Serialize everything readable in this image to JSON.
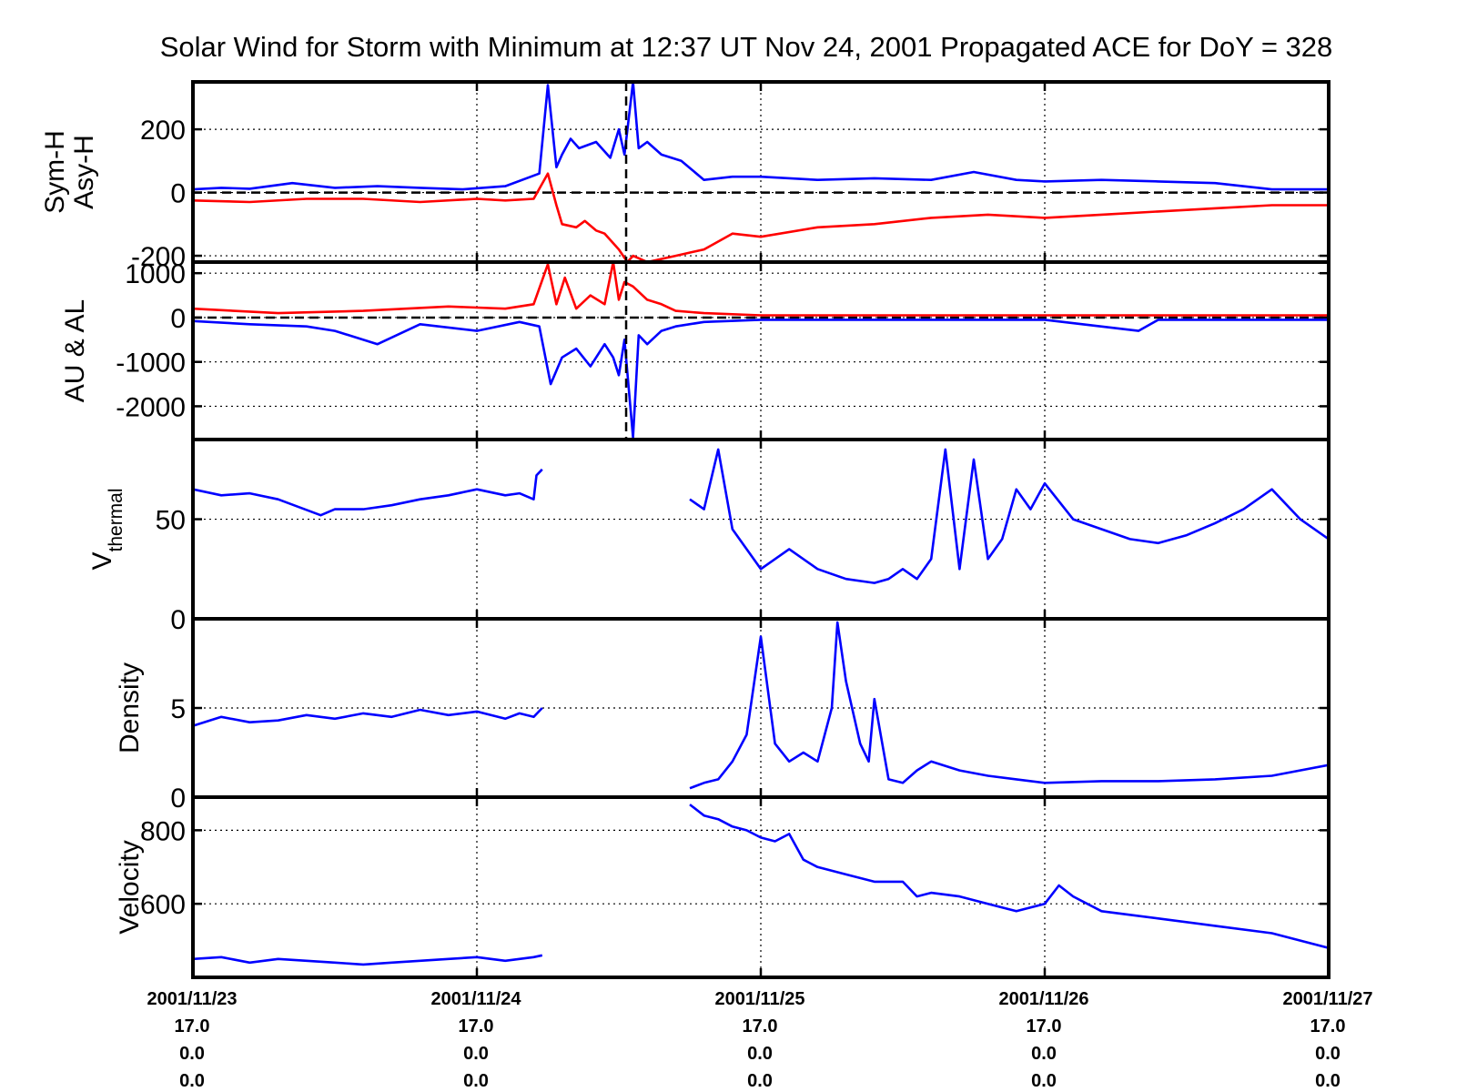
{
  "figure": {
    "title": "Solar Wind for Storm with Minimum at 12:37 UT Nov 24, 2001  Propagated ACE for DoY = 328",
    "x_tick_lines": [
      [
        "2001/11/23",
        "17.0",
        "0.0",
        "0.0"
      ],
      [
        "2001/11/24",
        "17.0",
        "0.0",
        "0.0"
      ],
      [
        "2001/11/25",
        "17.0",
        "0.0",
        "0.0"
      ],
      [
        "2001/11/26",
        "17.0",
        "0.0",
        "0.0"
      ],
      [
        "2001/11/27",
        "17.0",
        "0.0",
        "0.0"
      ]
    ]
  },
  "chart_data": [
    {
      "type": "line",
      "panel": "sym-asy",
      "ylabel_lines": [
        "Sym-H",
        "Asy-H"
      ],
      "x_range_days": [
        23,
        27
      ],
      "ylim": [
        -220,
        350
      ],
      "yticks": [
        -200,
        0,
        200
      ],
      "ytick_labels": [
        "-200",
        "0",
        "200"
      ],
      "grid": true,
      "zero_line": 0,
      "event_marker_day": 24.5257,
      "series": [
        {
          "color": "#0000ff",
          "x": [
            23.0,
            23.1,
            23.2,
            23.35,
            23.5,
            23.65,
            23.8,
            23.95,
            24.1,
            24.22,
            24.25,
            24.28,
            24.3,
            24.33,
            24.36,
            24.42,
            24.47,
            24.5,
            24.52,
            24.55,
            24.57,
            24.6,
            24.65,
            24.72,
            24.8,
            24.9,
            25.0,
            25.2,
            25.4,
            25.6,
            25.75,
            25.9,
            26.0,
            26.2,
            26.4,
            26.6,
            26.8,
            27.0
          ],
          "y": [
            10,
            15,
            12,
            30,
            15,
            20,
            15,
            10,
            20,
            60,
            340,
            80,
            120,
            170,
            140,
            160,
            110,
            200,
            120,
            350,
            140,
            160,
            120,
            100,
            40,
            50,
            50,
            40,
            45,
            40,
            65,
            40,
            35,
            40,
            35,
            30,
            10,
            10
          ]
        },
        {
          "color": "#ff0000",
          "x": [
            23.0,
            23.2,
            23.4,
            23.6,
            23.8,
            24.0,
            24.1,
            24.2,
            24.25,
            24.28,
            24.3,
            24.35,
            24.38,
            24.42,
            24.45,
            24.5,
            24.53,
            24.55,
            24.6,
            24.7,
            24.8,
            24.9,
            25.0,
            25.2,
            25.4,
            25.6,
            25.8,
            26.0,
            26.2,
            26.4,
            26.6,
            26.8,
            27.0
          ],
          "y": [
            -25,
            -30,
            -20,
            -20,
            -30,
            -20,
            -25,
            -20,
            60,
            -40,
            -100,
            -110,
            -90,
            -120,
            -130,
            -180,
            -220,
            -200,
            -220,
            -200,
            -180,
            -130,
            -140,
            -110,
            -100,
            -80,
            -70,
            -80,
            -70,
            -60,
            -50,
            -40,
            -40
          ]
        }
      ]
    },
    {
      "type": "line",
      "panel": "au-al",
      "ylabel_lines": [
        "AU & AL"
      ],
      "x_range_days": [
        23,
        27
      ],
      "ylim": [
        -2750,
        1250
      ],
      "yticks": [
        -2000,
        -1000,
        0,
        1000
      ],
      "ytick_labels": [
        "-2000",
        "-1000",
        "0",
        "1000"
      ],
      "grid": true,
      "zero_line": 0,
      "event_marker_day": 24.5257,
      "series": [
        {
          "color": "#0000ff",
          "x": [
            23.0,
            23.2,
            23.4,
            23.5,
            23.65,
            23.8,
            24.0,
            24.15,
            24.22,
            24.26,
            24.3,
            24.35,
            24.4,
            24.45,
            24.48,
            24.5,
            24.52,
            24.55,
            24.57,
            24.6,
            24.65,
            24.7,
            24.8,
            25.0,
            25.5,
            26.0,
            26.33,
            26.4,
            27.0
          ],
          "y": [
            -80,
            -150,
            -200,
            -300,
            -600,
            -150,
            -300,
            -100,
            -200,
            -1500,
            -900,
            -700,
            -1100,
            -600,
            -900,
            -1300,
            -500,
            -2700,
            -400,
            -600,
            -300,
            -200,
            -100,
            -50,
            -50,
            -50,
            -300,
            -50,
            -50
          ]
        },
        {
          "color": "#ff0000",
          "x": [
            23.0,
            23.3,
            23.6,
            23.9,
            24.1,
            24.2,
            24.25,
            24.28,
            24.31,
            24.35,
            24.4,
            24.45,
            24.48,
            24.5,
            24.52,
            24.55,
            24.6,
            24.65,
            24.7,
            24.8,
            25.0,
            26.0,
            27.0
          ],
          "y": [
            200,
            100,
            150,
            250,
            200,
            300,
            1200,
            300,
            900,
            200,
            500,
            300,
            1250,
            400,
            800,
            700,
            400,
            300,
            150,
            100,
            50,
            50,
            50
          ]
        }
      ]
    },
    {
      "type": "line",
      "panel": "vthermal",
      "ylabel_lines": [
        "V",
        "thermal"
      ],
      "x_range_days": [
        23,
        27
      ],
      "ylim": [
        0,
        90
      ],
      "yticks": [
        0,
        50
      ],
      "ytick_labels": [
        "0",
        "50"
      ],
      "grid": true,
      "series": [
        {
          "color": "#0000ff",
          "x": [
            23.0,
            23.1,
            23.2,
            23.3,
            23.45,
            23.5,
            23.6,
            23.7,
            23.8,
            23.9,
            24.0,
            24.1,
            24.15,
            24.2,
            24.21,
            24.23
          ],
          "y": [
            65,
            62,
            63,
            60,
            52,
            55,
            55,
            57,
            60,
            62,
            65,
            62,
            63,
            60,
            72,
            75
          ]
        },
        {
          "color": "#0000ff",
          "x": [
            24.75,
            24.8,
            24.85,
            24.9,
            24.95,
            25.0,
            25.1,
            25.2,
            25.3,
            25.4,
            25.45,
            25.5,
            25.55,
            25.6,
            25.65,
            25.7,
            25.75,
            25.8,
            25.85,
            25.9,
            25.95,
            26.0,
            26.1,
            26.2,
            26.3,
            26.4,
            26.5,
            26.6,
            26.7,
            26.8,
            26.9,
            27.0
          ],
          "y": [
            60,
            55,
            85,
            45,
            35,
            25,
            35,
            25,
            20,
            18,
            20,
            25,
            20,
            30,
            85,
            25,
            80,
            30,
            40,
            65,
            55,
            68,
            50,
            45,
            40,
            38,
            42,
            48,
            55,
            65,
            50,
            40
          ]
        }
      ]
    },
    {
      "type": "line",
      "panel": "density",
      "ylabel_lines": [
        "Density"
      ],
      "x_range_days": [
        23,
        27
      ],
      "ylim": [
        0,
        10
      ],
      "yticks": [
        0,
        5
      ],
      "ytick_labels": [
        "0",
        "5"
      ],
      "grid": true,
      "series": [
        {
          "color": "#0000ff",
          "x": [
            23.0,
            23.1,
            23.2,
            23.3,
            23.4,
            23.5,
            23.6,
            23.7,
            23.8,
            23.9,
            24.0,
            24.1,
            24.15,
            24.2,
            24.23
          ],
          "y": [
            4.0,
            4.5,
            4.2,
            4.3,
            4.6,
            4.4,
            4.7,
            4.5,
            4.9,
            4.6,
            4.8,
            4.4,
            4.7,
            4.5,
            5.0
          ]
        },
        {
          "color": "#0000ff",
          "x": [
            24.75,
            24.8,
            24.85,
            24.9,
            24.95,
            25.0,
            25.05,
            25.1,
            25.15,
            25.2,
            25.25,
            25.27,
            25.3,
            25.35,
            25.38,
            25.4,
            25.45,
            25.5,
            25.55,
            25.6,
            25.7,
            25.8,
            25.9,
            26.0,
            26.2,
            26.4,
            26.6,
            26.8,
            27.0
          ],
          "y": [
            0.5,
            0.8,
            1.0,
            2.0,
            3.5,
            9.0,
            3.0,
            2.0,
            2.5,
            2.0,
            5.0,
            9.8,
            6.5,
            3.0,
            2.0,
            5.5,
            1.0,
            0.8,
            1.5,
            2.0,
            1.5,
            1.2,
            1.0,
            0.8,
            0.9,
            0.9,
            1.0,
            1.2,
            1.8
          ]
        }
      ]
    },
    {
      "type": "line",
      "panel": "velocity",
      "ylabel_lines": [
        "Velocity"
      ],
      "x_range_days": [
        23,
        27
      ],
      "ylim": [
        400,
        890
      ],
      "yticks": [
        600,
        800
      ],
      "ytick_labels": [
        "600",
        "800"
      ],
      "grid": true,
      "series": [
        {
          "color": "#0000ff",
          "x": [
            23.0,
            23.1,
            23.2,
            23.3,
            23.4,
            23.5,
            23.6,
            23.7,
            23.8,
            23.9,
            24.0,
            24.1,
            24.15,
            24.2,
            24.23
          ],
          "y": [
            450,
            455,
            440,
            450,
            445,
            440,
            435,
            440,
            445,
            450,
            455,
            445,
            450,
            455,
            460
          ]
        },
        {
          "color": "#0000ff",
          "x": [
            24.75,
            24.8,
            24.85,
            24.9,
            24.95,
            25.0,
            25.05,
            25.1,
            25.15,
            25.2,
            25.3,
            25.4,
            25.5,
            25.55,
            25.6,
            25.7,
            25.8,
            25.9,
            26.0,
            26.05,
            26.1,
            26.2,
            26.3,
            26.4,
            26.6,
            26.8,
            27.0
          ],
          "y": [
            870,
            840,
            830,
            810,
            800,
            780,
            770,
            790,
            720,
            700,
            680,
            660,
            660,
            620,
            630,
            620,
            600,
            580,
            600,
            650,
            620,
            580,
            570,
            560,
            540,
            520,
            480
          ]
        }
      ]
    }
  ]
}
